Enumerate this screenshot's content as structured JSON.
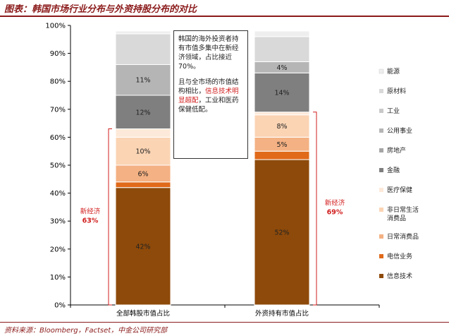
{
  "title": "图表：韩国市场行业分布与外资持股分布的对比",
  "source": "资料来源：Bloomberg，Factset，中金公司研究部",
  "note": {
    "para1": "韩国的海外投资者持有市值多集中在新经济领域，占比接近70%。",
    "para2_before": "且与全市场的市值结构相比，",
    "para2_red": "信息技术明显超配",
    "para2_after": "，工业和医药保健低配。"
  },
  "chart_data": {
    "type": "bar",
    "stacked": true,
    "categories": [
      "全部韩股市值占比",
      "外资持有市值占比"
    ],
    "ylim": [
      0,
      100
    ],
    "yticks": [
      "0%",
      "10%",
      "20%",
      "30%",
      "40%",
      "50%",
      "60%",
      "70%",
      "80%",
      "90%",
      "100%"
    ],
    "grid": false,
    "legend_position": "right",
    "series": [
      {
        "name": "信息技术",
        "color": "#8e4a0a",
        "values": [
          42,
          52
        ],
        "labels": [
          "42%",
          "52%"
        ]
      },
      {
        "name": "电信业务",
        "color": "#e06a1a",
        "values": [
          2,
          3
        ],
        "labels": [
          "",
          ""
        ]
      },
      {
        "name": "日常消费品",
        "color": "#f4b183",
        "values": [
          6,
          5
        ],
        "labels": [
          "6%",
          "5%"
        ]
      },
      {
        "name": "非日常生活消费品",
        "color": "#fbd4b4",
        "values": [
          10,
          8
        ],
        "labels": [
          "10%",
          "8%"
        ]
      },
      {
        "name": "医疗保健",
        "color": "#fde9d9",
        "values": [
          3,
          1
        ],
        "labels": [
          "",
          ""
        ]
      },
      {
        "name": "金融",
        "color": "#7f7f7f",
        "values": [
          12,
          14
        ],
        "labels": [
          "12%",
          "14%"
        ]
      },
      {
        "name": "房地产",
        "color": "#a6a6a6",
        "values": [
          0,
          0
        ],
        "labels": [
          "",
          ""
        ]
      },
      {
        "name": "公用事业",
        "color": "#b5b5b5",
        "values": [
          11,
          4
        ],
        "labels": [
          "11%",
          "4%"
        ]
      },
      {
        "name": "工业",
        "color": "#c9c9c9",
        "values": [
          0,
          0
        ],
        "labels": [
          "",
          ""
        ]
      },
      {
        "name": "原材料",
        "color": "#d9d9d9",
        "values": [
          11,
          9
        ],
        "labels": [
          "",
          ""
        ]
      },
      {
        "name": "能源",
        "color": "#eeeeee",
        "values": [
          1,
          2
        ],
        "labels": [
          "",
          ""
        ]
      }
    ],
    "annotations": [
      {
        "text": "新经济",
        "value": "63%",
        "bar": 0
      },
      {
        "text": "新经济",
        "value": "69%",
        "bar": 1
      }
    ]
  }
}
